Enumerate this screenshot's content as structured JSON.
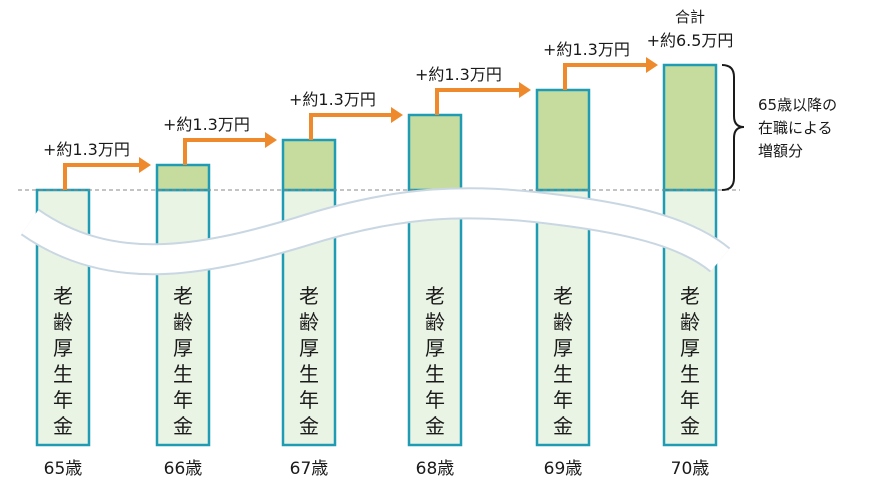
{
  "chart_data": {
    "type": "bar",
    "categories": [
      "65歳",
      "66歳",
      "67歳",
      "68歳",
      "69歳",
      "70歳"
    ],
    "base_label": "老齢厚生年金",
    "increase_units": [
      0,
      1,
      2,
      3,
      4,
      5
    ],
    "step_label": "+約1.3万円",
    "total_title": "合計",
    "total_label": "+約6.5万円",
    "brace_label": [
      "65歳以降の",
      "在職による",
      "増額分"
    ],
    "colors": {
      "base_fill": "#eaf4e4",
      "increase_fill": "#c5dc9e",
      "bar_stroke": "#1f9bb3",
      "arrow": "#ef8a2c",
      "baseline": "#888888",
      "wave": "#c9d7e3"
    }
  }
}
